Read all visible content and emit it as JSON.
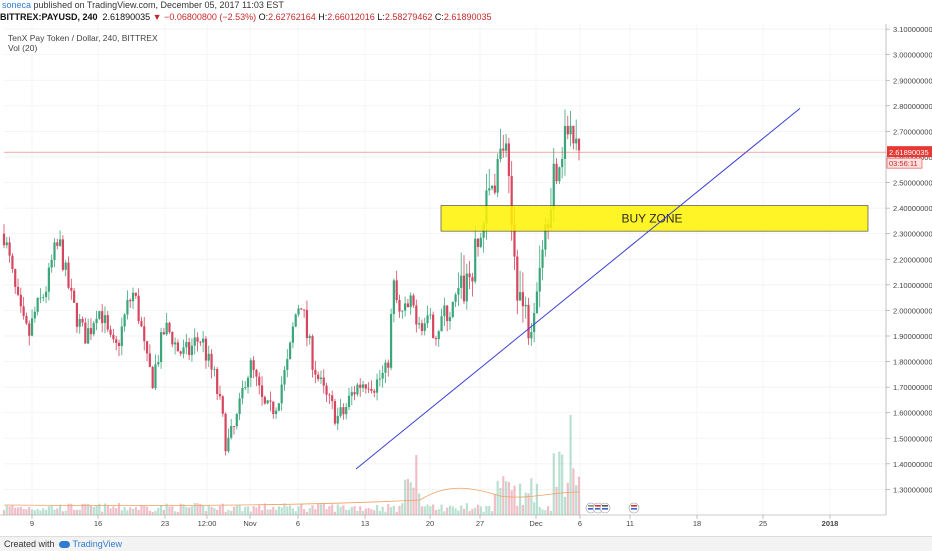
{
  "header": {
    "publisher": "soneca",
    "published_text": "published on TradingView.com, December 05, 2017 11:03 EST",
    "symbol": "BITTREX:PAYUSD, 240",
    "last": "2.61890035",
    "change": "−0.06800800 (−2.53%)",
    "o_label": "O:",
    "o": "2.62762164",
    "h_label": "H:",
    "h": "2.66012016",
    "l_label": "L:",
    "l": "2.58279462",
    "c_label": "C:",
    "c": "2.61890035"
  },
  "legend": {
    "title": "TenX Pay Token / Dollar, 240, BITTREX",
    "vol": "Vol (20)"
  },
  "footer": {
    "created_with": "Created with",
    "brand": "TradingView"
  },
  "chart_data": {
    "type": "candlestick",
    "y_axis": {
      "range": [
        1.2,
        3.12
      ],
      "ticks": [
        "3.10000000",
        "3.00000000",
        "2.90000000",
        "2.80000000",
        "2.70000000",
        "2.60000000",
        "2.50000000",
        "2.40000000",
        "2.30000000",
        "2.20000000",
        "2.10000000",
        "2.00000000",
        "1.90000000",
        "1.80000000",
        "1.70000000",
        "1.60000000",
        "1.50000000",
        "1.40000000",
        "1.30000000"
      ]
    },
    "x_axis": {
      "labels": [
        "9",
        "16",
        "23",
        "12:00",
        "Nov",
        "6",
        "13",
        "20",
        "27",
        "Dec",
        "6",
        "11",
        "18",
        "25",
        "2018"
      ]
    },
    "last_price_label": "2.61890035",
    "countdown_label": "03:56:11",
    "annotation": {
      "text": "BUY ZONE",
      "y_low": 2.31,
      "y_high": 2.41
    },
    "trendline": {
      "from": [
        1,
        1.38
      ],
      "to": [
        2,
        2.79
      ]
    },
    "colors": {
      "up": "#3aa67a",
      "down": "#d6465f",
      "zone_fill": "#fff200",
      "trendline": "#3b3fd6",
      "last_price": "#e53935"
    },
    "path": [
      2.3,
      2.18,
      2.05,
      1.95,
      1.9,
      1.99,
      2.04,
      2.1,
      2.22,
      2.26,
      2.14,
      2.03,
      1.96,
      1.9,
      1.93,
      2.01,
      1.98,
      1.88,
      1.84,
      1.92,
      2.02,
      2.07,
      1.96,
      1.8,
      1.73,
      1.83,
      1.93,
      1.91,
      1.85,
      1.83,
      1.84,
      1.88,
      1.89,
      1.8,
      1.74,
      1.62,
      1.47,
      1.52,
      1.6,
      1.74,
      1.78,
      1.7,
      1.62,
      1.6,
      1.64,
      1.72,
      1.8,
      1.97,
      2.05,
      1.9,
      1.8,
      1.72,
      1.66,
      1.62,
      1.58,
      1.6,
      1.66,
      1.7,
      1.72,
      1.73,
      1.71,
      1.74,
      1.76,
      2.1,
      1.97,
      2.0,
      2.02,
      1.97,
      1.95,
      1.94,
      1.92,
      1.98,
      1.99,
      2.02,
      2.07,
      2.12,
      2.18,
      2.28,
      2.4,
      2.5,
      2.58,
      2.66,
      2.35,
      2.12,
      2.0,
      1.95,
      2.1,
      2.28,
      2.4,
      2.55,
      2.62,
      2.72,
      2.65,
      2.62
    ],
    "volume_profile": "low background volume with spikes near 20-Nov, late Nov and early Dec"
  }
}
